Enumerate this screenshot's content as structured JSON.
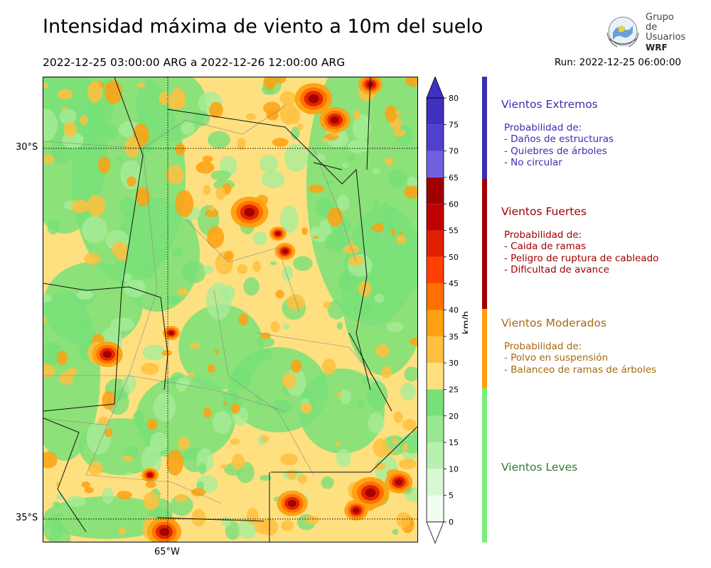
{
  "title": "Intensidad máxima de viento a 10m del suelo",
  "period": "2022-12-25 03:00:00 ARG  a  2022-12-26 12:00:00 ARG",
  "run": "Run: 2022-12-25 06:00:00",
  "logo": {
    "line1": "Grupo de",
    "line2": "Usuarios",
    "line3": "WRF"
  },
  "map": {
    "lat_labels": [
      "30°S",
      "35°S"
    ],
    "lon_labels": [
      "65°W"
    ]
  },
  "colorbar": {
    "unit": "km/h",
    "ticks": [
      "0",
      "5",
      "10",
      "15",
      "20",
      "25",
      "30",
      "35",
      "40",
      "45",
      "50",
      "55",
      "60",
      "65",
      "70",
      "75",
      "80"
    ],
    "colors": [
      "#f0fdf0",
      "#d8f8d4",
      "#b8f0b0",
      "#98e890",
      "#78e078",
      "#ffe080",
      "#ffc040",
      "#ffa010",
      "#ff7000",
      "#ff4000",
      "#e02000",
      "#c00000",
      "#a00000",
      "#7060e0",
      "#5040d0",
      "#4030c0"
    ]
  },
  "categories": [
    {
      "title": "Vientos Extremos",
      "color": "#3a2fb0",
      "lines": [
        "Probabilidad de:",
        "- Daños de estructuras",
        "- Quiebres de árboles",
        "- No circular"
      ]
    },
    {
      "title": "Vientos Fuertes",
      "color": "#a00000",
      "lines": [
        "Probabilidad de:",
        "- Caida de ramas",
        "- Peligro de ruptura de cableado",
        "- Dificultad de avance"
      ]
    },
    {
      "title": "Vientos Moderados",
      "color": "#a66a10",
      "lines": [
        "Probabilidad de:",
        "- Polvo en suspensión",
        "- Balanceo de ramas de árboles"
      ]
    },
    {
      "title": "Vientos Leves",
      "color": "#2e7d32",
      "lines": []
    }
  ],
  "category_bar_colors": [
    "#3a2fb0",
    "#a00000",
    "#ffa010",
    "#78f078"
  ]
}
